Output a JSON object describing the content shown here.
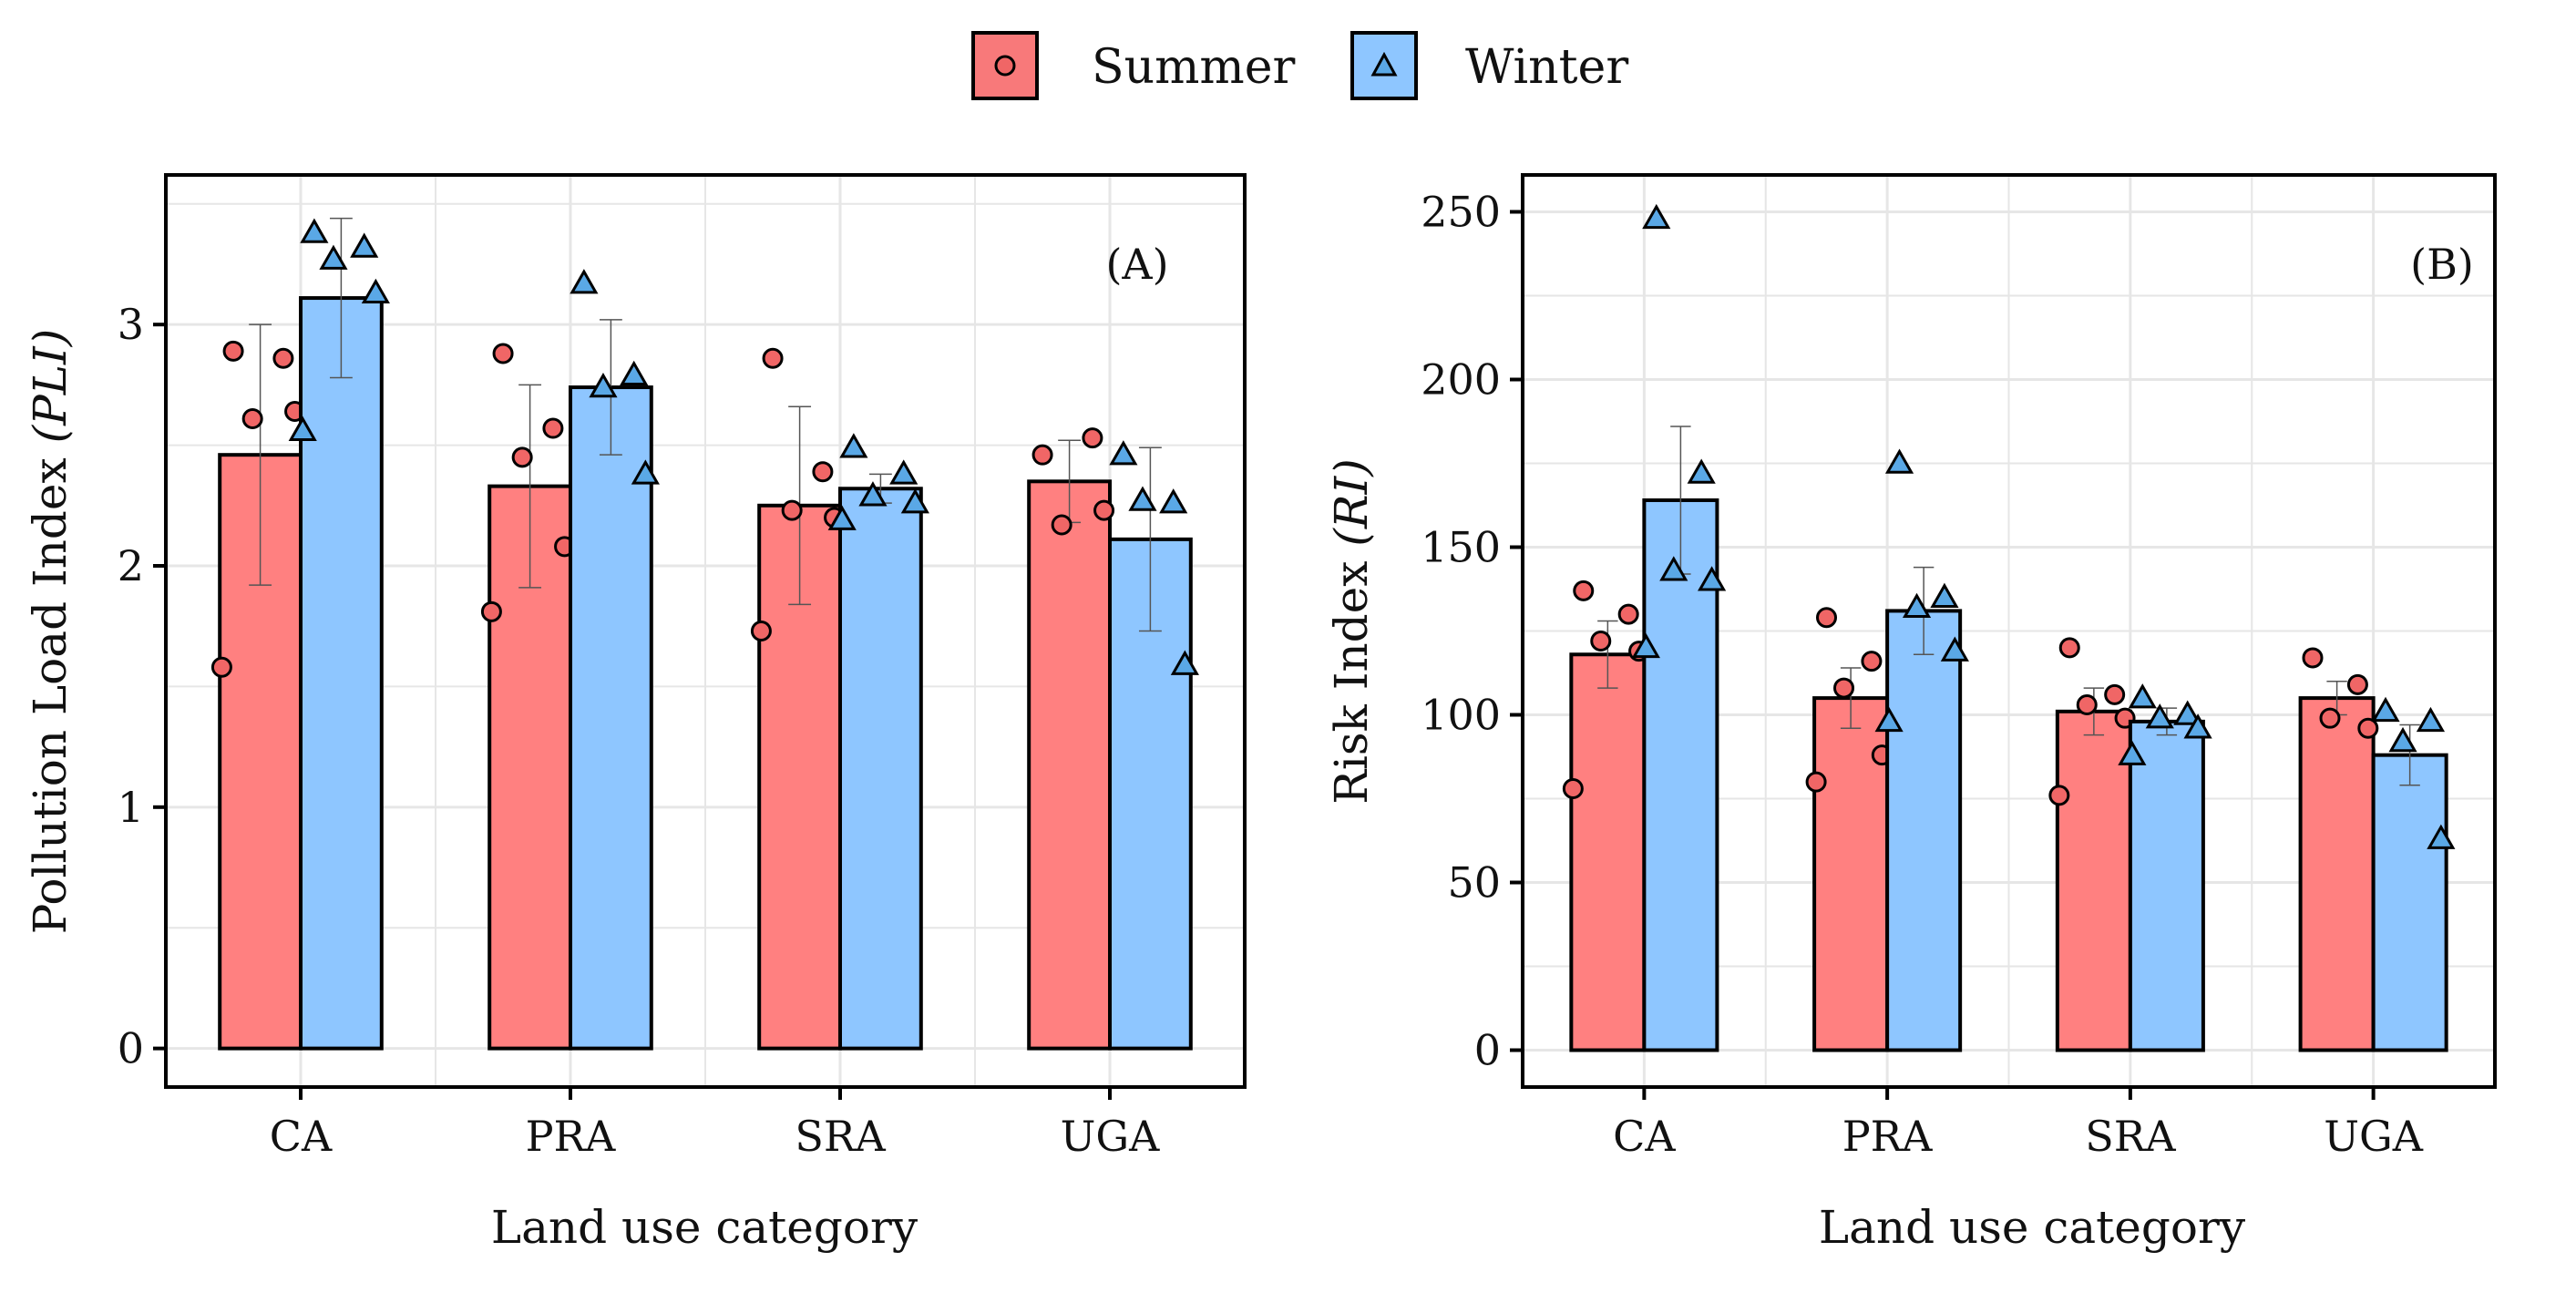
{
  "legend": {
    "items": [
      {
        "label": "Summer",
        "color": "#F8797A",
        "marker": "circle"
      },
      {
        "label": "Winter",
        "color": "#8EC6FF",
        "marker": "triangle"
      }
    ]
  },
  "colors": {
    "summer_fill": "#FF8080",
    "summer_point": "#F06666",
    "winter_fill": "#8EC6FF",
    "winter_point": "#5AA8E6",
    "grid": "#E6E6E6",
    "border": "#000000"
  },
  "chart_data": [
    {
      "type": "bar",
      "panel_label": "(A)",
      "title": "",
      "xlabel": "Land use category",
      "ylabel_main": "Pollution Load Index ",
      "ylabel_symbol": "(PLI)",
      "categories": [
        "CA",
        "PRA",
        "SRA",
        "UGA"
      ],
      "ylim": [
        -0.16,
        3.62
      ],
      "yticks": [
        0,
        1,
        2,
        3
      ],
      "ytick_labels": [
        "0",
        "1",
        "2",
        "3"
      ],
      "grid": true,
      "series": [
        {
          "name": "Summer",
          "values": [
            2.46,
            2.33,
            2.25,
            2.35
          ],
          "err": [
            0.54,
            0.42,
            0.41,
            0.17
          ],
          "points": [
            [
              2.89,
              2.86,
              2.61,
              2.64,
              1.58
            ],
            [
              2.88,
              2.57,
              2.45,
              2.08,
              1.81
            ],
            [
              2.86,
              2.39,
              2.23,
              2.2,
              1.73
            ],
            [
              2.46,
              2.53,
              2.17,
              2.23
            ]
          ]
        },
        {
          "name": "Winter",
          "values": [
            3.11,
            2.74,
            2.32,
            2.11
          ],
          "err": [
            0.33,
            0.28,
            0.06,
            0.38
          ],
          "points": [
            [
              3.38,
              3.32,
              3.27,
              3.13,
              2.56
            ],
            [
              3.17,
              2.79,
              2.74,
              2.38
            ],
            [
              2.49,
              2.38,
              2.29,
              2.26,
              2.19
            ],
            [
              2.46,
              2.26,
              2.27,
              1.59
            ]
          ]
        }
      ]
    },
    {
      "type": "bar",
      "panel_label": "(B)",
      "title": "",
      "xlabel": "Land use category",
      "ylabel_main": "Risk Index ",
      "ylabel_symbol": "(RI)",
      "categories": [
        "CA",
        "PRA",
        "SRA",
        "UGA"
      ],
      "ylim": [
        -11,
        261
      ],
      "yticks": [
        0,
        50,
        100,
        150,
        200,
        250
      ],
      "ytick_labels": [
        "0",
        "50",
        "100",
        "150",
        "200",
        "250"
      ],
      "grid": true,
      "series": [
        {
          "name": "Summer",
          "values": [
            118,
            105,
            101,
            105
          ],
          "err": [
            10,
            9,
            7,
            5
          ],
          "points": [
            [
              137,
              130,
              122,
              119,
              78
            ],
            [
              129,
              116,
              108,
              88,
              80
            ],
            [
              120,
              106,
              103,
              99,
              76
            ],
            [
              117,
              109,
              99,
              96
            ]
          ]
        },
        {
          "name": "Winter",
          "values": [
            164,
            131,
            98,
            88
          ],
          "err": [
            22,
            13,
            4,
            9
          ],
          "points": [
            [
              248,
              172,
              143,
              140,
              120
            ],
            [
              175,
              135,
              132,
              119,
              98
            ],
            [
              105,
              100,
              99,
              96,
              88
            ],
            [
              101,
              98,
              92,
              63
            ]
          ]
        }
      ]
    }
  ]
}
